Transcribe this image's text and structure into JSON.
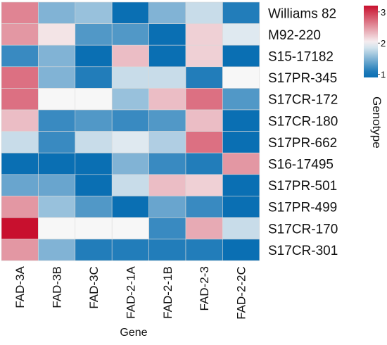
{
  "chart_data": {
    "type": "heatmap",
    "xlabel": "Gene",
    "legend_title": "Genotype",
    "columns": [
      "FAD-3A",
      "FAD-3B",
      "FAD-3C",
      "FAD-2-1A",
      "FAD-2-1B",
      "FAD-2-3",
      "FAD-2-2C"
    ],
    "rows": [
      "Williams 82",
      "M92-220",
      "S15-17182",
      "S17PR-345",
      "S17CR-172",
      "S17CR-180",
      "S17PR-662",
      "S16-17495",
      "S17PR-501",
      "S17PR-499",
      "S17CR-170",
      "S17CR-301"
    ],
    "values": [
      [
        2.6,
        1.5,
        1.6,
        1.0,
        1.5,
        1.8,
        1.1
      ],
      [
        2.5,
        2.1,
        1.3,
        1.3,
        1.0,
        2.2,
        1.9
      ],
      [
        1.2,
        1.5,
        1.0,
        2.3,
        1.0,
        2.2,
        1.0
      ],
      [
        2.7,
        1.5,
        1.1,
        1.8,
        1.8,
        1.1,
        2.0
      ],
      [
        2.7,
        2.0,
        2.0,
        1.6,
        2.3,
        2.7,
        1.3
      ],
      [
        2.3,
        1.2,
        1.3,
        1.2,
        1.3,
        2.3,
        1.0
      ],
      [
        1.8,
        1.2,
        1.8,
        1.9,
        1.7,
        2.7,
        1.0
      ],
      [
        1.0,
        1.0,
        1.0,
        1.5,
        1.2,
        1.1,
        2.5
      ],
      [
        1.4,
        1.4,
        1.0,
        1.8,
        2.3,
        2.2,
        1.0
      ],
      [
        2.5,
        1.6,
        1.3,
        1.0,
        1.4,
        1.2,
        1.0
      ],
      [
        3.2,
        2.0,
        2.0,
        2.0,
        1.2,
        2.4,
        1.8
      ],
      [
        2.5,
        1.5,
        1.1,
        1.1,
        1.1,
        1.1,
        1.0
      ]
    ],
    "colorbar": {
      "range": [
        0.9,
        3.2
      ],
      "ticks": [
        "1",
        "2",
        "3"
      ],
      "tick_values": [
        1,
        2,
        3
      ]
    },
    "colors": {
      "low": "#0a6fb3",
      "mid": "#f7f7f7",
      "high": "#c8102e"
    }
  }
}
